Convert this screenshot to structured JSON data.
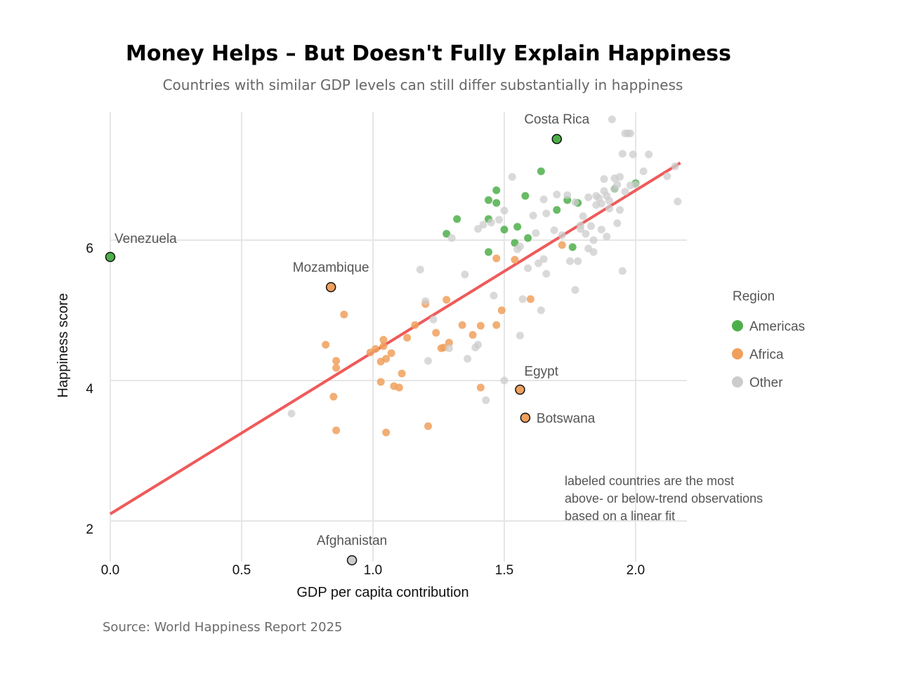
{
  "chart_data": {
    "type": "scatter",
    "title": "Money Helps – But Doesn't Fully Explain Happiness",
    "subtitle": "Countries with similar GDP levels can still differ substantially in happiness",
    "caption": "Source: World Happiness Report 2025",
    "xlabel": "GDP per capita contribution",
    "ylabel": "Happiness score",
    "xlim": [
      0.0,
      2.2
    ],
    "ylim": [
      1.5,
      7.9
    ],
    "x_ticks": [
      {
        "v": 0.0,
        "label": "0.0"
      },
      {
        "v": 0.5,
        "label": "0.5"
      },
      {
        "v": 1.0,
        "label": "1.0"
      },
      {
        "v": 1.5,
        "label": "1.5"
      },
      {
        "v": 2.0,
        "label": "2.0"
      }
    ],
    "y_ticks": [
      {
        "v": 2,
        "label": "2"
      },
      {
        "v": 4,
        "label": "4"
      },
      {
        "v": 6,
        "label": "6"
      }
    ],
    "grid": true,
    "legend": {
      "title": "Region",
      "position": "right",
      "items": [
        {
          "name": "Americas",
          "color": "#4daf4a"
        },
        {
          "name": "Africa",
          "color": "#f0a05d"
        },
        {
          "name": "Other",
          "color": "#cccccc"
        }
      ]
    },
    "fit_line": {
      "color": "#ef5a5a",
      "x": [
        0.0,
        2.17
      ],
      "y": [
        2.1,
        7.1
      ]
    },
    "note_lines": [
      "labeled countries are the most",
      "above- or below-trend observations",
      "based on a linear fit"
    ],
    "labeled": [
      {
        "name": "Costa Rica",
        "x": 1.7,
        "y": 7.44,
        "region": "Americas",
        "anchor": "above"
      },
      {
        "name": "Venezuela",
        "x": 0.0,
        "y": 5.76,
        "region": "Americas",
        "anchor": "above-right"
      },
      {
        "name": "Mozambique",
        "x": 0.84,
        "y": 5.33,
        "region": "Africa",
        "anchor": "above"
      },
      {
        "name": "Egypt",
        "x": 1.56,
        "y": 3.87,
        "region": "Africa",
        "anchor": "above-right"
      },
      {
        "name": "Botswana",
        "x": 1.58,
        "y": 3.47,
        "region": "Africa",
        "anchor": "right"
      },
      {
        "name": "Afghanistan",
        "x": 0.92,
        "y": 1.44,
        "region": "Other",
        "anchor": "above"
      }
    ],
    "series": [
      {
        "name": "Americas",
        "color": "#4daf4a",
        "x": [
          1.64,
          1.47,
          1.44,
          1.58,
          1.47,
          1.78,
          1.7,
          1.32,
          1.44,
          1.74,
          1.55,
          1.5,
          1.28,
          1.92,
          2.0,
          1.54,
          1.59,
          1.44,
          1.76
        ],
        "y": [
          6.98,
          6.71,
          6.57,
          6.63,
          6.53,
          6.53,
          6.43,
          6.3,
          6.3,
          6.57,
          6.19,
          6.15,
          6.09,
          6.73,
          6.81,
          5.96,
          6.03,
          5.83,
          5.9
        ]
      },
      {
        "name": "Africa",
        "color": "#f0a05d",
        "x": [
          0.89,
          1.28,
          1.2,
          1.16,
          1.47,
          1.54,
          1.49,
          1.6,
          1.72,
          1.41,
          1.34,
          1.47,
          1.24,
          1.13,
          1.04,
          0.82,
          0.86,
          0.86,
          0.99,
          1.01,
          1.04,
          1.05,
          1.03,
          1.07,
          1.11,
          1.29,
          1.26,
          1.27,
          1.38,
          0.85,
          1.03,
          1.1,
          1.08,
          1.41,
          0.86,
          1.05,
          1.21
        ],
        "y": [
          4.94,
          5.15,
          5.09,
          4.79,
          5.74,
          5.72,
          5.0,
          5.16,
          5.93,
          4.78,
          4.79,
          4.79,
          4.68,
          4.61,
          4.58,
          4.51,
          4.28,
          4.18,
          4.4,
          4.45,
          4.49,
          4.31,
          4.27,
          4.39,
          4.1,
          4.54,
          4.46,
          4.47,
          4.65,
          3.77,
          3.98,
          3.9,
          3.92,
          3.9,
          3.29,
          3.26,
          3.35
        ]
      },
      {
        "name": "Other",
        "color": "#cccccc",
        "x": [
          0.69,
          1.18,
          1.2,
          1.23,
          1.3,
          1.35,
          1.4,
          1.39,
          1.36,
          1.29,
          1.21,
          1.43,
          1.5,
          1.46,
          1.57,
          1.55,
          1.56,
          1.59,
          1.63,
          1.65,
          1.64,
          1.66,
          1.69,
          1.72,
          1.75,
          1.77,
          1.79,
          1.8,
          1.81,
          1.82,
          1.83,
          1.84,
          1.85,
          1.86,
          1.87,
          1.88,
          1.89,
          1.9,
          1.91,
          1.92,
          1.93,
          1.94,
          1.95,
          1.96,
          1.97,
          1.98,
          1.99,
          2.0,
          2.03,
          2.05,
          2.12,
          2.15,
          2.16,
          1.53,
          1.5,
          1.48,
          1.45,
          1.42,
          1.4,
          1.62,
          1.66,
          1.7,
          1.74,
          1.77,
          1.79,
          1.82,
          1.85,
          1.88,
          1.9,
          1.92,
          1.94,
          1.96,
          1.98,
          1.56,
          1.61,
          1.65,
          1.78,
          1.84,
          1.87,
          1.89,
          1.93,
          1.95
        ],
        "y": [
          3.53,
          5.58,
          5.13,
          4.87,
          6.03,
          5.51,
          4.51,
          4.47,
          4.31,
          4.46,
          4.28,
          3.72,
          4.0,
          5.21,
          5.16,
          5.87,
          4.64,
          5.6,
          5.67,
          5.73,
          5.0,
          5.52,
          6.14,
          6.07,
          5.7,
          5.29,
          6.21,
          6.34,
          6.09,
          5.88,
          6.2,
          6.0,
          6.5,
          6.6,
          6.52,
          6.7,
          6.63,
          6.56,
          7.72,
          6.73,
          6.24,
          6.9,
          7.23,
          7.52,
          7.52,
          7.52,
          7.22,
          6.79,
          6.98,
          7.22,
          6.91,
          7.05,
          6.55,
          6.9,
          6.42,
          6.29,
          6.25,
          6.22,
          6.16,
          6.1,
          6.38,
          6.65,
          6.64,
          6.54,
          6.16,
          6.61,
          6.63,
          6.87,
          6.45,
          6.88,
          6.43,
          6.69,
          6.78,
          5.91,
          6.35,
          6.58,
          5.7,
          5.83,
          6.15,
          6.05,
          6.79,
          5.56
        ]
      }
    ]
  }
}
